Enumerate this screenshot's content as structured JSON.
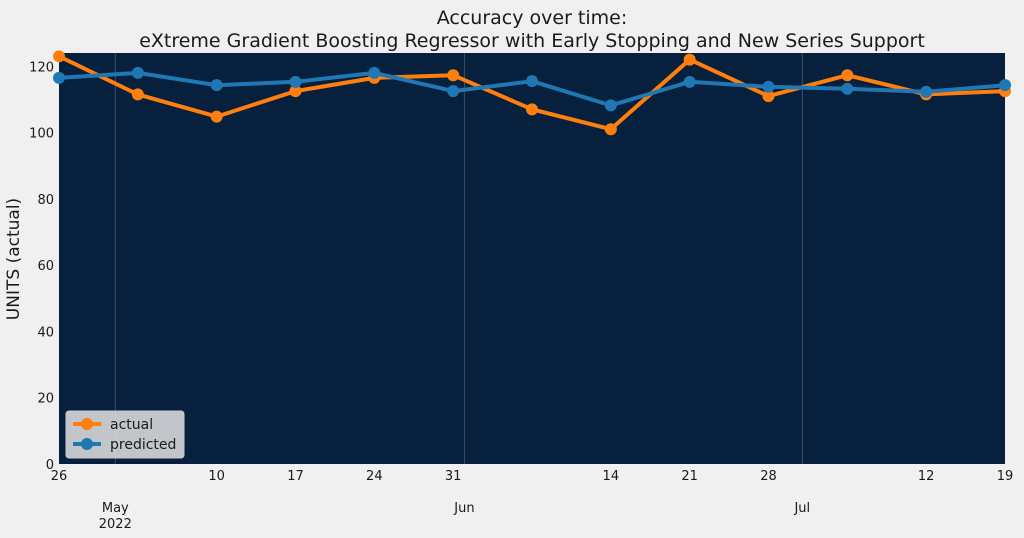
{
  "chart_data": {
    "type": "line",
    "title_line1": "Accuracy over time:",
    "title_line2": "eXtreme Gradient Boosting Regressor with Early Stopping and New Series Support",
    "ylabel": "UNITS (actual)",
    "xlabel": "",
    "ylim": [
      0,
      124
    ],
    "yticks": [
      0,
      20,
      40,
      60,
      80,
      100,
      120
    ],
    "x": [
      "2022-04-26",
      "2022-05-03",
      "2022-05-10",
      "2022-05-17",
      "2022-05-24",
      "2022-05-31",
      "2022-06-07",
      "2022-06-14",
      "2022-06-21",
      "2022-06-28",
      "2022-07-05",
      "2022-07-12",
      "2022-07-19"
    ],
    "xlim": [
      "2022-04-26",
      "2022-07-19"
    ],
    "xticks_minor": [
      {
        "date": "2022-04-26",
        "label": "26"
      },
      {
        "date": "2022-05-10",
        "label": "10"
      },
      {
        "date": "2022-05-17",
        "label": "17"
      },
      {
        "date": "2022-05-24",
        "label": "24"
      },
      {
        "date": "2022-05-31",
        "label": "31"
      },
      {
        "date": "2022-06-14",
        "label": "14"
      },
      {
        "date": "2022-06-21",
        "label": "21"
      },
      {
        "date": "2022-06-28",
        "label": "28"
      },
      {
        "date": "2022-07-12",
        "label": "12"
      },
      {
        "date": "2022-07-19",
        "label": "19"
      }
    ],
    "xticks_major": [
      {
        "date": "2022-05-01",
        "label": "May",
        "sublabel": "2022"
      },
      {
        "date": "2022-06-01",
        "label": "Jun",
        "sublabel": ""
      },
      {
        "date": "2022-07-01",
        "label": "Jul",
        "sublabel": ""
      }
    ],
    "series": [
      {
        "name": "actual",
        "color": "#ff7f0e",
        "values": [
          123,
          111.5,
          104.8,
          112.5,
          116.5,
          117.3,
          107,
          101,
          122,
          111,
          117.3,
          111.5,
          112.5
        ]
      },
      {
        "name": "predicted",
        "color": "#1f77b4",
        "values": [
          116.5,
          118,
          114.3,
          115.3,
          118,
          112.5,
          115.5,
          108.2,
          115.3,
          113.8,
          113.2,
          112.3,
          114.3
        ]
      }
    ],
    "grid": "major x only",
    "legend_position": "lower-left",
    "plot_background": "#07203d"
  }
}
